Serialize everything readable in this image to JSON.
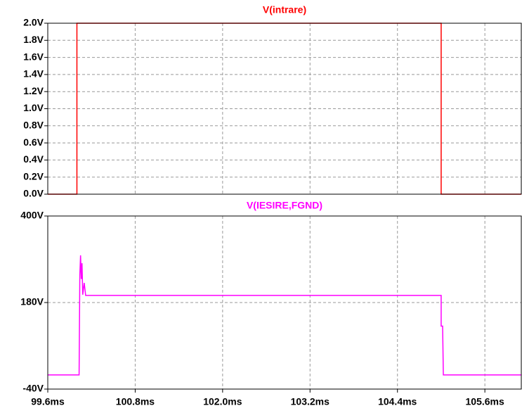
{
  "chart_data": [
    {
      "type": "line",
      "title": "V(intrare)",
      "x": [
        99.6,
        100.0,
        100.0,
        105.0,
        105.0,
        106.1
      ],
      "series": [
        {
          "color": "#ff0000",
          "values": [
            0,
            0,
            2,
            2,
            0,
            0
          ]
        }
      ],
      "ylim": [
        0,
        2
      ],
      "yticks": [
        {
          "value": 0,
          "label": "0.0V"
        },
        {
          "value": 0.2,
          "label": "0.2V"
        },
        {
          "value": 0.4,
          "label": "0.4V"
        },
        {
          "value": 0.6,
          "label": "0.6V"
        },
        {
          "value": 0.8,
          "label": "0.8V"
        },
        {
          "value": 1.0,
          "label": "1.0V"
        },
        {
          "value": 1.2,
          "label": "1.2V"
        },
        {
          "value": 1.4,
          "label": "1.4V"
        },
        {
          "value": 1.6,
          "label": "1.6V"
        },
        {
          "value": 1.8,
          "label": "1.8V"
        },
        {
          "value": 2.0,
          "label": "2.0V"
        }
      ],
      "grid": true
    },
    {
      "type": "line",
      "title": "V(IESIRE,FGND)",
      "x": [
        99.6,
        100.03,
        100.04,
        100.05,
        100.06,
        100.07,
        100.08,
        100.1,
        100.12,
        105.0,
        105.0,
        105.02,
        105.03,
        106.1
      ],
      "series": [
        {
          "color": "#ff00ff",
          "values": [
            -4,
            -4,
            250,
            300,
            240,
            280,
            200,
            230,
            198,
            198,
            120,
            120,
            -4,
            -4
          ]
        }
      ],
      "xlim": [
        99.6,
        106.1
      ],
      "xticks": [
        {
          "value": 99.6,
          "label": "99.6ms"
        },
        {
          "value": 100.8,
          "label": "100.8ms"
        },
        {
          "value": 102.0,
          "label": "102.0ms"
        },
        {
          "value": 103.2,
          "label": "103.2ms"
        },
        {
          "value": 104.4,
          "label": "104.4ms"
        },
        {
          "value": 105.6,
          "label": "105.6ms"
        }
      ],
      "ylim": [
        -40,
        400
      ],
      "yticks": [
        {
          "value": -40,
          "label": "-40V"
        },
        {
          "value": 180,
          "label": "180V"
        },
        {
          "value": 400,
          "label": "400V"
        }
      ],
      "grid": true
    }
  ]
}
